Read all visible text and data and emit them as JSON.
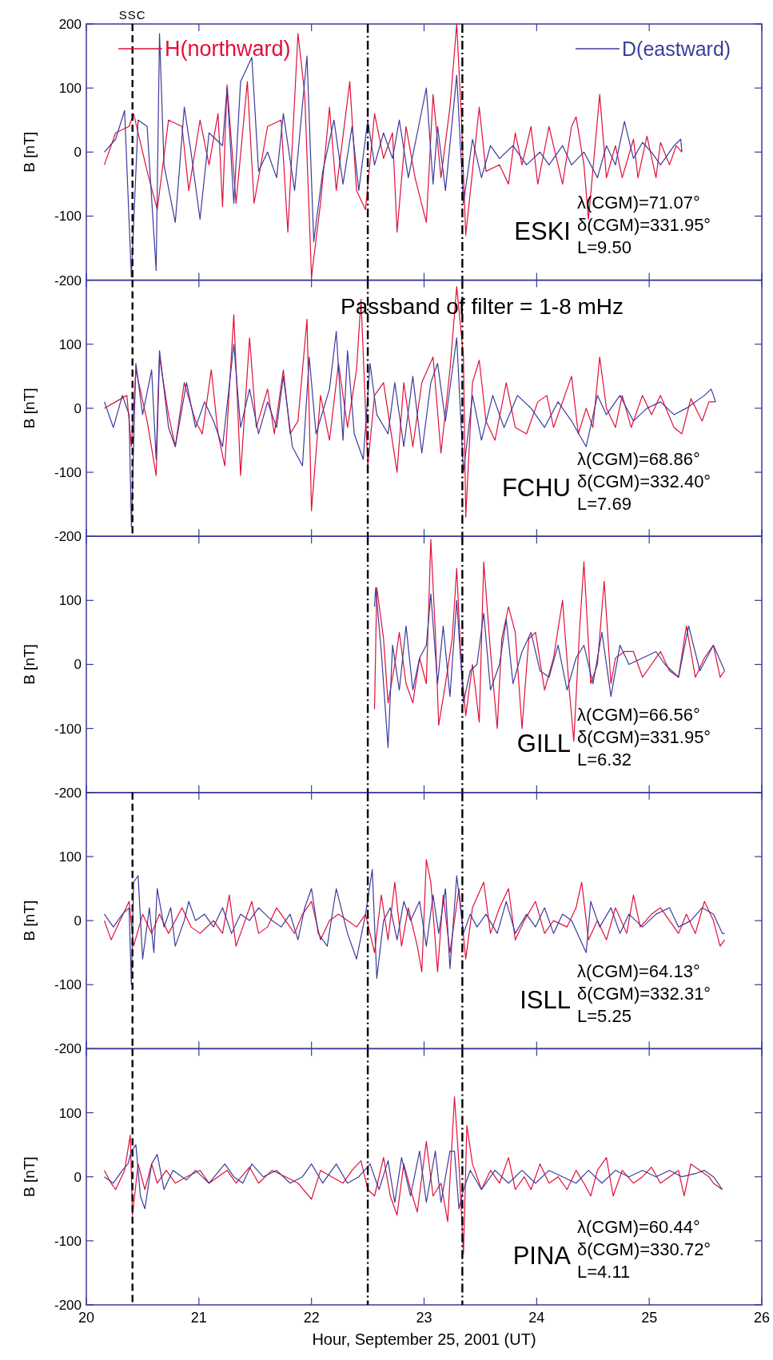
{
  "chart_data": [
    {
      "type": "line",
      "ylabel": "B [nT]",
      "xlim": [
        20,
        26
      ],
      "ylim": [
        -200,
        200
      ],
      "xticks": [
        20,
        21,
        22,
        23,
        24,
        25,
        26
      ],
      "yticks": [
        -200,
        -100,
        0,
        100,
        200
      ],
      "tick_labels": "y",
      "legend": "top",
      "annotations": [
        "ESKI",
        "λ(CGM)=71.07°",
        "δ(CGM)=331.95°",
        "L=9.50"
      ],
      "ref_lines": [
        {
          "axis": "x",
          "value": 20.41,
          "label": "SSC",
          "line_style": "dashed",
          "color": "#000000"
        },
        {
          "axis": "x",
          "value": 22.5,
          "line_style": "dashdot",
          "color": "#000000"
        },
        {
          "axis": "x",
          "value": 23.34,
          "line_style": "dashdot",
          "color": "#000000"
        }
      ],
      "series": [
        {
          "name": "H(northward)",
          "color": "#e0103a",
          "x": [
            20.16,
            20.26,
            20.38,
            20.42,
            20.54,
            20.63,
            20.73,
            20.85,
            20.91,
            21.01,
            21.09,
            21.17,
            21.21,
            21.25,
            21.33,
            21.43,
            21.49,
            21.61,
            21.73,
            21.79,
            21.88,
            21.94,
            22.0,
            22.08,
            22.16,
            22.22,
            22.34,
            22.4,
            22.48,
            22.56,
            22.64,
            22.72,
            22.76,
            22.84,
            22.92,
            23.02,
            23.08,
            23.15,
            23.23,
            23.29,
            23.33,
            23.37,
            23.43,
            23.49,
            23.55,
            23.67,
            23.75,
            23.81,
            23.87,
            23.95,
            24.01,
            24.11,
            24.23,
            24.31,
            24.35,
            24.42,
            24.46,
            24.56,
            24.62,
            24.7,
            24.76,
            24.86,
            24.9,
            24.98,
            25.06,
            25.1,
            25.18,
            25.24,
            25.29
          ],
          "values": [
            -20,
            30,
            40,
            60,
            -30,
            -90,
            50,
            40,
            -60,
            50,
            -20,
            60,
            -85,
            105,
            -80,
            110,
            -80,
            40,
            50,
            -125,
            185,
            90,
            -195,
            -80,
            70,
            -60,
            110,
            -60,
            -90,
            60,
            -10,
            30,
            -125,
            40,
            -40,
            -110,
            90,
            -40,
            70,
            200,
            60,
            -130,
            -30,
            70,
            -30,
            -20,
            -50,
            30,
            -20,
            40,
            -50,
            40,
            -50,
            40,
            55,
            -20,
            -105,
            90,
            -40,
            10,
            -40,
            20,
            -40,
            25,
            -40,
            15,
            -20,
            10,
            0
          ]
        },
        {
          "name": "D(eastward)",
          "color": "#3c3c9c",
          "x": [
            20.16,
            20.26,
            20.34,
            20.4,
            20.46,
            20.54,
            20.62,
            20.65,
            20.69,
            20.79,
            20.87,
            20.93,
            21.01,
            21.09,
            21.15,
            21.21,
            21.25,
            21.31,
            21.37,
            21.47,
            21.53,
            21.61,
            21.69,
            21.75,
            21.85,
            21.96,
            22.02,
            22.1,
            22.2,
            22.28,
            22.36,
            22.42,
            22.5,
            22.56,
            22.64,
            22.72,
            22.78,
            22.86,
            22.94,
            23.02,
            23.08,
            23.12,
            23.19,
            23.29,
            23.35,
            23.43,
            23.51,
            23.59,
            23.67,
            23.79,
            23.91,
            24.03,
            24.11,
            24.23,
            24.31,
            24.42,
            24.54,
            24.62,
            24.7,
            24.78,
            24.86,
            24.94,
            25.02,
            25.1,
            25.22,
            25.28,
            25.29
          ],
          "values": [
            0,
            20,
            65,
            -195,
            50,
            40,
            -185,
            185,
            -20,
            -110,
            70,
            0,
            -105,
            30,
            20,
            10,
            100,
            -80,
            110,
            148,
            -30,
            0,
            -40,
            60,
            -60,
            150,
            -140,
            -30,
            50,
            -50,
            40,
            -60,
            50,
            -20,
            30,
            -10,
            50,
            -40,
            30,
            100,
            -50,
            40,
            -60,
            120,
            -80,
            20,
            -40,
            10,
            -10,
            10,
            -20,
            0,
            -20,
            10,
            -20,
            0,
            -40,
            10,
            -20,
            48,
            -10,
            15,
            0,
            -20,
            10,
            20,
            0
          ]
        }
      ]
    },
    {
      "type": "line",
      "ylabel": "B [nT]",
      "xlim": [
        20,
        26
      ],
      "ylim": [
        -200,
        200
      ],
      "xticks": [
        20,
        21,
        22,
        23,
        24,
        25,
        26
      ],
      "yticks": [
        -200,
        -100,
        0,
        100
      ],
      "tick_labels": "y",
      "annotations": [
        "FCHU",
        "λ(CGM)=68.86°",
        "δ(CGM)=332.40°",
        "L=7.69",
        "Passband of filter = 1-8 mHz"
      ],
      "ref_lines": [
        {
          "axis": "x",
          "value": 20.41,
          "line_style": "dashed",
          "color": "#000000"
        },
        {
          "axis": "x",
          "value": 22.5,
          "line_style": "dashdot",
          "color": "#000000"
        },
        {
          "axis": "x",
          "value": 23.34,
          "line_style": "dashdot",
          "color": "#000000"
        }
      ],
      "series": [
        {
          "color": "#e0103a",
          "x": [
            20.16,
            20.26,
            20.36,
            20.4,
            20.44,
            20.54,
            20.62,
            20.65,
            20.73,
            20.79,
            20.87,
            20.97,
            21.03,
            21.11,
            21.17,
            21.23,
            21.31,
            21.37,
            21.45,
            21.51,
            21.61,
            21.67,
            21.75,
            21.81,
            21.88,
            21.96,
            22.0,
            22.08,
            22.16,
            22.24,
            22.32,
            22.4,
            22.44,
            22.5,
            22.56,
            22.64,
            22.7,
            22.76,
            22.82,
            22.9,
            22.98,
            23.08,
            23.15,
            23.23,
            23.29,
            23.35,
            23.37,
            23.43,
            23.49,
            23.55,
            23.63,
            23.73,
            23.81,
            23.91,
            24.01,
            24.09,
            24.15,
            24.23,
            24.31,
            24.37,
            24.44,
            24.5,
            24.56,
            24.62,
            24.7,
            24.76,
            24.84,
            24.94,
            25.02,
            25.1,
            25.22,
            25.29,
            25.37,
            25.47,
            25.53,
            25.59
          ],
          "values": [
            0,
            10,
            20,
            -60,
            60,
            -20,
            -105,
            80,
            -10,
            -60,
            40,
            -20,
            -40,
            60,
            -40,
            -90,
            146,
            -105,
            110,
            -30,
            30,
            -40,
            60,
            -40,
            -20,
            139,
            -160,
            20,
            -50,
            70,
            -30,
            60,
            170,
            -90,
            20,
            40,
            -30,
            -100,
            40,
            -60,
            40,
            80,
            -70,
            60,
            190,
            80,
            -170,
            40,
            75,
            -20,
            -50,
            40,
            -30,
            -40,
            10,
            20,
            -30,
            10,
            50,
            -40,
            0,
            -30,
            80,
            0,
            -30,
            20,
            -30,
            20,
            -10,
            20,
            -30,
            -40,
            15,
            -20,
            10,
            10
          ]
        },
        {
          "color": "#3c3c9c",
          "x": [
            20.16,
            20.24,
            20.32,
            20.38,
            20.4,
            20.44,
            20.5,
            20.58,
            20.62,
            20.65,
            20.73,
            20.79,
            20.89,
            20.97,
            21.05,
            21.13,
            21.21,
            21.31,
            21.37,
            21.45,
            21.53,
            21.61,
            21.69,
            21.75,
            21.83,
            21.92,
            21.98,
            22.04,
            22.16,
            22.22,
            22.28,
            22.32,
            22.38,
            22.46,
            22.52,
            22.58,
            22.68,
            22.74,
            22.82,
            22.9,
            22.98,
            23.06,
            23.12,
            23.19,
            23.29,
            23.35,
            23.43,
            23.51,
            23.61,
            23.71,
            23.83,
            23.95,
            24.07,
            24.19,
            24.31,
            24.44,
            24.54,
            24.62,
            24.74,
            24.86,
            24.98,
            25.1,
            25.22,
            25.33,
            25.49,
            25.55,
            25.59
          ],
          "values": [
            10,
            -30,
            20,
            -10,
            -185,
            70,
            -10,
            60,
            -80,
            90,
            -30,
            -60,
            40,
            -30,
            10,
            -20,
            -60,
            100,
            -30,
            30,
            -40,
            10,
            -30,
            50,
            -60,
            -90,
            80,
            -40,
            30,
            120,
            -50,
            90,
            -40,
            -80,
            70,
            -10,
            -40,
            40,
            -60,
            50,
            -70,
            40,
            70,
            -20,
            110,
            -100,
            20,
            -50,
            20,
            -30,
            20,
            0,
            -30,
            10,
            -20,
            -60,
            20,
            -10,
            20,
            -20,
            0,
            10,
            -10,
            0,
            20,
            30,
            10
          ]
        }
      ]
    },
    {
      "type": "line",
      "ylabel": "B [nT]",
      "xlim": [
        20,
        26
      ],
      "ylim": [
        -200,
        200
      ],
      "xticks": [
        20,
        21,
        22,
        23,
        24,
        25,
        26
      ],
      "yticks": [
        -200,
        -100,
        0,
        100
      ],
      "tick_labels": "y",
      "annotations": [
        "GILL",
        "λ(CGM)=66.56°",
        "δ(CGM)=331.95°",
        "L=6.32"
      ],
      "ref_lines": [
        {
          "axis": "x",
          "value": 22.5,
          "line_style": "dashdot",
          "color": "#000000"
        },
        {
          "axis": "x",
          "value": 23.34,
          "line_style": "dashdot",
          "color": "#000000"
        }
      ],
      "series": [
        {
          "color": "#e0103a",
          "x": [
            22.56,
            22.58,
            22.64,
            22.68,
            22.74,
            22.78,
            22.84,
            22.9,
            22.96,
            23.02,
            23.06,
            23.1,
            23.13,
            23.19,
            23.25,
            23.29,
            23.33,
            23.37,
            23.43,
            23.49,
            23.53,
            23.59,
            23.65,
            23.69,
            23.75,
            23.81,
            23.87,
            23.93,
            23.99,
            24.07,
            24.15,
            24.23,
            24.29,
            24.33,
            24.38,
            24.42,
            24.48,
            24.54,
            24.6,
            24.66,
            24.7,
            24.78,
            24.86,
            24.94,
            25.02,
            25.1,
            25.18,
            25.26,
            25.33,
            25.41,
            25.49,
            25.57,
            25.63,
            25.67
          ],
          "values": [
            -70,
            120,
            40,
            -60,
            0,
            50,
            -30,
            -60,
            10,
            -30,
            195,
            50,
            -95,
            -30,
            40,
            150,
            0,
            -80,
            0,
            -90,
            160,
            20,
            -100,
            40,
            90,
            50,
            -100,
            40,
            50,
            -40,
            10,
            100,
            -40,
            -120,
            50,
            160,
            -30,
            0,
            130,
            -30,
            10,
            20,
            20,
            -20,
            0,
            20,
            -10,
            -20,
            60,
            -20,
            10,
            30,
            -20,
            -10
          ]
        },
        {
          "color": "#3c3c9c",
          "x": [
            22.56,
            22.57,
            22.62,
            22.68,
            22.72,
            22.78,
            22.84,
            22.9,
            22.96,
            23.02,
            23.06,
            23.12,
            23.17,
            23.23,
            23.29,
            23.35,
            23.41,
            23.47,
            23.53,
            23.59,
            23.67,
            23.73,
            23.79,
            23.87,
            23.95,
            24.03,
            24.11,
            24.19,
            24.27,
            24.35,
            24.42,
            24.5,
            24.58,
            24.66,
            24.74,
            24.82,
            24.94,
            25.06,
            25.14,
            25.26,
            25.35,
            25.45,
            25.57,
            25.67
          ],
          "values": [
            90,
            120,
            20,
            -130,
            30,
            -40,
            60,
            -40,
            10,
            30,
            110,
            -30,
            60,
            -50,
            100,
            -60,
            -10,
            0,
            80,
            -40,
            0,
            70,
            -30,
            20,
            50,
            -10,
            -20,
            30,
            -40,
            10,
            30,
            -30,
            50,
            -50,
            30,
            0,
            10,
            20,
            0,
            -20,
            60,
            -10,
            30,
            -10
          ]
        }
      ]
    },
    {
      "type": "line",
      "ylabel": "B [nT]",
      "xlim": [
        20,
        26
      ],
      "ylim": [
        -200,
        200
      ],
      "xticks": [
        20,
        21,
        22,
        23,
        24,
        25,
        26
      ],
      "yticks": [
        -200,
        -100,
        0,
        100
      ],
      "tick_labels": "y",
      "annotations": [
        "ISLL",
        "λ(CGM)=64.13°",
        "δ(CGM)=332.31°",
        "L=5.25"
      ],
      "ref_lines": [
        {
          "axis": "x",
          "value": 20.41,
          "line_style": "dashed",
          "color": "#000000"
        },
        {
          "axis": "x",
          "value": 22.5,
          "line_style": "dashdot",
          "color": "#000000"
        },
        {
          "axis": "x",
          "value": 23.34,
          "line_style": "dashdot",
          "color": "#000000"
        }
      ],
      "series": [
        {
          "color": "#e0103a",
          "x": [
            20.16,
            20.22,
            20.3,
            20.38,
            20.42,
            20.5,
            20.58,
            20.65,
            20.73,
            20.85,
            20.93,
            21.01,
            21.13,
            21.21,
            21.27,
            21.33,
            21.41,
            21.47,
            21.53,
            21.61,
            21.69,
            21.77,
            21.85,
            21.92,
            22.0,
            22.08,
            22.16,
            22.24,
            22.32,
            22.4,
            22.48,
            22.56,
            22.62,
            22.68,
            22.74,
            22.8,
            22.86,
            22.94,
            22.98,
            23.02,
            23.06,
            23.12,
            23.17,
            23.23,
            23.31,
            23.37,
            23.43,
            23.53,
            23.59,
            23.67,
            23.75,
            23.81,
            23.89,
            23.99,
            24.07,
            24.15,
            24.27,
            24.35,
            24.4,
            24.46,
            24.54,
            24.62,
            24.7,
            24.8,
            24.86,
            24.92,
            25.02,
            25.1,
            25.18,
            25.26,
            25.33,
            25.41,
            25.49,
            25.57,
            25.63,
            25.67
          ],
          "values": [
            0,
            -30,
            0,
            30,
            -40,
            10,
            -20,
            10,
            -20,
            20,
            -10,
            -20,
            0,
            -20,
            40,
            -40,
            0,
            30,
            -20,
            -10,
            20,
            0,
            -20,
            10,
            30,
            -30,
            0,
            10,
            0,
            -10,
            10,
            -50,
            40,
            -30,
            60,
            -40,
            20,
            -40,
            -80,
            95,
            60,
            -80,
            40,
            -50,
            50,
            -60,
            20,
            60,
            -20,
            20,
            50,
            -30,
            0,
            30,
            -20,
            0,
            -10,
            20,
            60,
            -30,
            0,
            -30,
            20,
            -20,
            40,
            -10,
            10,
            20,
            0,
            -20,
            10,
            -20,
            30,
            0,
            -40,
            -30
          ]
        },
        {
          "color": "#3c3c9c",
          "x": [
            20.16,
            20.24,
            20.32,
            20.38,
            20.4,
            20.42,
            20.46,
            20.5,
            20.56,
            20.6,
            20.63,
            20.69,
            20.75,
            20.79,
            20.87,
            20.91,
            20.97,
            21.05,
            21.13,
            21.21,
            21.29,
            21.37,
            21.45,
            21.53,
            21.65,
            21.73,
            21.81,
            21.88,
            21.94,
            22.0,
            22.06,
            22.14,
            22.22,
            22.32,
            22.4,
            22.48,
            22.54,
            22.58,
            22.64,
            22.7,
            22.76,
            22.82,
            22.88,
            22.96,
            23.02,
            23.08,
            23.13,
            23.19,
            23.23,
            23.29,
            23.35,
            23.41,
            23.47,
            23.55,
            23.65,
            23.73,
            23.81,
            23.91,
            23.99,
            24.07,
            24.15,
            24.23,
            24.31,
            24.44,
            24.48,
            24.56,
            24.66,
            24.74,
            24.82,
            24.94,
            25.06,
            25.18,
            25.26,
            25.37,
            25.47,
            25.57,
            25.65,
            25.67
          ],
          "values": [
            10,
            -10,
            10,
            20,
            -100,
            60,
            70,
            -60,
            20,
            -50,
            50,
            -10,
            20,
            -40,
            0,
            30,
            0,
            10,
            -10,
            20,
            -20,
            10,
            0,
            20,
            0,
            -10,
            10,
            -30,
            20,
            50,
            -20,
            -40,
            50,
            -20,
            -60,
            10,
            80,
            -90,
            0,
            20,
            -30,
            30,
            0,
            30,
            -40,
            40,
            -20,
            50,
            -75,
            70,
            -20,
            10,
            -10,
            10,
            -20,
            30,
            -20,
            10,
            -10,
            20,
            -20,
            10,
            0,
            -50,
            30,
            -10,
            20,
            -20,
            10,
            -10,
            10,
            20,
            -10,
            0,
            20,
            10,
            -20,
            -20
          ]
        }
      ]
    },
    {
      "type": "line",
      "ylabel": "B [nT]",
      "xlabel": "Hour, September 25, 2001 (UT)",
      "xlim": [
        20,
        26
      ],
      "ylim": [
        -200,
        200
      ],
      "xticks": [
        20,
        21,
        22,
        23,
        24,
        25,
        26
      ],
      "yticks": [
        -200,
        -100,
        0,
        100
      ],
      "annotations": [
        "PINA",
        "λ(CGM)=60.44°",
        "δ(CGM)=330.72°",
        "L=4.11"
      ],
      "ref_lines": [
        {
          "axis": "x",
          "value": 20.41,
          "line_style": "dashed",
          "color": "#000000"
        },
        {
          "axis": "x",
          "value": 22.5,
          "line_style": "dashdot",
          "color": "#000000"
        },
        {
          "axis": "x",
          "value": 23.34,
          "line_style": "dashdot",
          "color": "#000000"
        }
      ],
      "series": [
        {
          "color": "#e0103a",
          "x": [
            20.16,
            20.22,
            20.26,
            20.34,
            20.39,
            20.41,
            20.46,
            20.52,
            20.58,
            20.63,
            20.71,
            20.79,
            20.89,
            21.01,
            21.09,
            21.17,
            21.25,
            21.33,
            21.45,
            21.53,
            21.65,
            21.77,
            21.88,
            22.0,
            22.08,
            22.18,
            22.28,
            22.36,
            22.44,
            22.5,
            22.56,
            22.64,
            22.7,
            22.76,
            22.82,
            22.88,
            22.94,
            23.02,
            23.08,
            23.15,
            23.21,
            23.27,
            23.31,
            23.35,
            23.38,
            23.43,
            23.51,
            23.59,
            23.67,
            23.75,
            23.81,
            23.89,
            23.95,
            24.03,
            24.11,
            24.19,
            24.27,
            24.35,
            24.42,
            24.48,
            24.54,
            24.62,
            24.68,
            24.76,
            24.86,
            24.94,
            25.02,
            25.1,
            25.18,
            25.26,
            25.31,
            25.37,
            25.45,
            25.53,
            25.57,
            25.65
          ],
          "values": [
            10,
            -10,
            -20,
            10,
            65,
            -60,
            20,
            -20,
            20,
            -10,
            10,
            -10,
            0,
            10,
            -10,
            0,
            10,
            -10,
            15,
            -10,
            10,
            0,
            -10,
            -35,
            10,
            0,
            -10,
            10,
            25,
            -20,
            -30,
            30,
            -30,
            -60,
            20,
            -20,
            -55,
            55,
            -30,
            -10,
            -70,
            125,
            20,
            -120,
            80,
            20,
            -20,
            10,
            -10,
            30,
            -20,
            0,
            -20,
            20,
            -10,
            0,
            -20,
            10,
            -10,
            -30,
            10,
            30,
            -30,
            10,
            -10,
            0,
            15,
            -10,
            0,
            10,
            -30,
            20,
            10,
            0,
            -10,
            -20
          ]
        },
        {
          "color": "#3c3c9c",
          "x": [
            20.16,
            20.24,
            20.32,
            20.37,
            20.4,
            20.44,
            20.48,
            20.52,
            20.58,
            20.63,
            20.69,
            20.77,
            20.89,
            20.97,
            21.09,
            21.23,
            21.31,
            21.39,
            21.47,
            21.57,
            21.69,
            21.81,
            21.92,
            22.0,
            22.1,
            22.22,
            22.32,
            22.42,
            22.52,
            22.6,
            22.68,
            22.74,
            22.8,
            22.88,
            22.96,
            23.02,
            23.1,
            23.15,
            23.23,
            23.27,
            23.31,
            23.35,
            23.41,
            23.51,
            23.63,
            23.75,
            23.87,
            23.99,
            24.11,
            24.23,
            24.35,
            24.46,
            24.58,
            24.7,
            24.82,
            24.94,
            25.06,
            25.18,
            25.29,
            25.41,
            25.49,
            25.57,
            25.65
          ],
          "values": [
            0,
            -10,
            10,
            20,
            40,
            50,
            -30,
            -50,
            20,
            35,
            -20,
            10,
            -5,
            10,
            -10,
            20,
            0,
            -10,
            20,
            0,
            10,
            -10,
            0,
            20,
            -10,
            20,
            -10,
            0,
            20,
            -20,
            25,
            -40,
            30,
            -30,
            40,
            -40,
            40,
            -40,
            40,
            40,
            -50,
            -20,
            10,
            -20,
            10,
            -10,
            10,
            -10,
            10,
            0,
            -10,
            10,
            -10,
            10,
            0,
            10,
            0,
            10,
            0,
            5,
            10,
            0,
            -20
          ]
        }
      ]
    }
  ]
}
